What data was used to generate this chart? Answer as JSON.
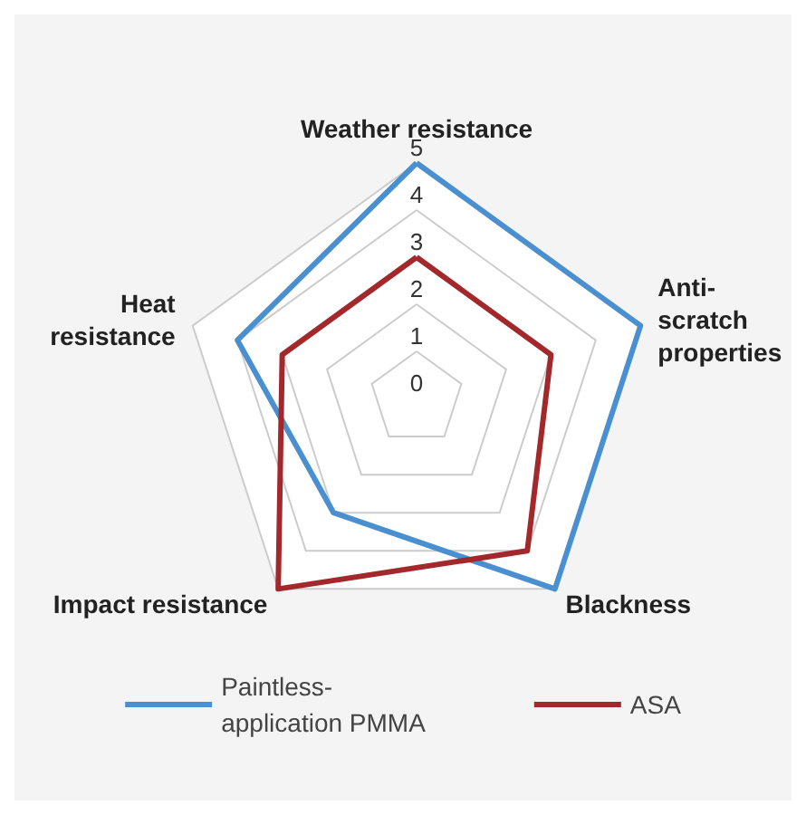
{
  "chart_data": {
    "type": "radar",
    "categories": [
      "Weather resistance",
      "Anti-\nscratch\nproperties",
      "Blackness",
      "Impact resistance",
      "Heat\nresistance"
    ],
    "ylim": [
      0,
      5
    ],
    "yticks": [
      0,
      1,
      2,
      3,
      4,
      5
    ],
    "legend": "bottom",
    "marker": "none",
    "series": [
      {
        "name": "Paintless-\napplication PMMA",
        "color": "#4a8fd0",
        "values": [
          5,
          5,
          5,
          3,
          4
        ]
      },
      {
        "name": "ASA",
        "color": "#a3282c",
        "values": [
          3,
          3,
          4,
          5,
          3
        ]
      }
    ]
  }
}
